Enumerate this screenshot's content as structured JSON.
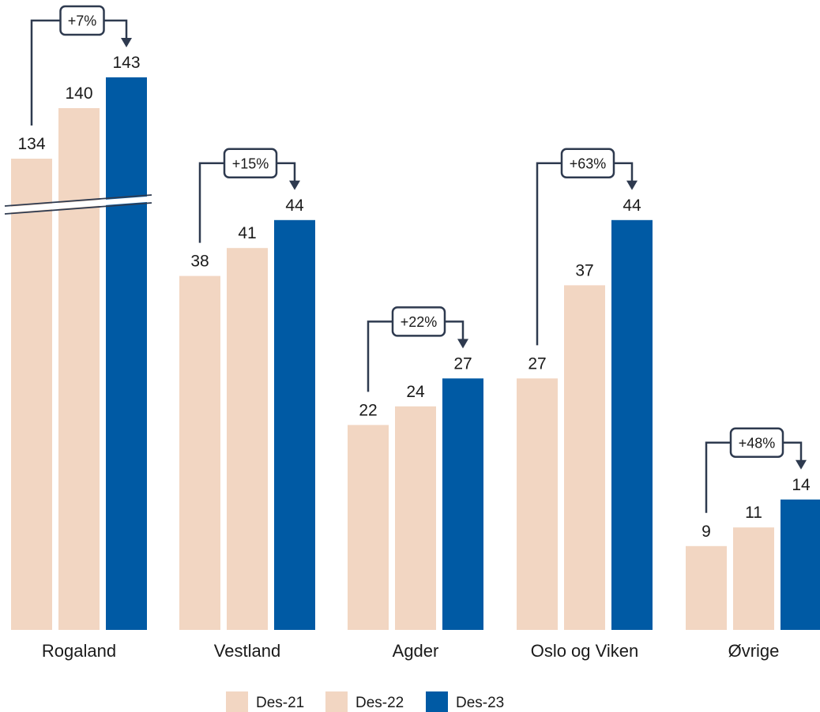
{
  "chart_data": {
    "type": "bar",
    "categories": [
      "Rogaland",
      "Vestland",
      "Agder",
      "Oslo og Viken",
      "Øvrige"
    ],
    "series": [
      {
        "name": "Des-21",
        "values": [
          134,
          38,
          22,
          27,
          9
        ],
        "color": "#f2d6c2"
      },
      {
        "name": "Des-22",
        "values": [
          140,
          41,
          24,
          37,
          11
        ],
        "color": "#f2d6c2"
      },
      {
        "name": "Des-23",
        "values": [
          143,
          44,
          27,
          44,
          14
        ],
        "color": "#005aa4"
      }
    ],
    "changes": [
      "+7%",
      "+15%",
      "+22%",
      "+63%",
      "+48%"
    ],
    "axis_break": {
      "category": "Rogaland"
    },
    "title": "",
    "xlabel": "",
    "ylabel": "",
    "grid": false,
    "legend": "bottom-center",
    "bracket_color": "#2e3a4f"
  }
}
